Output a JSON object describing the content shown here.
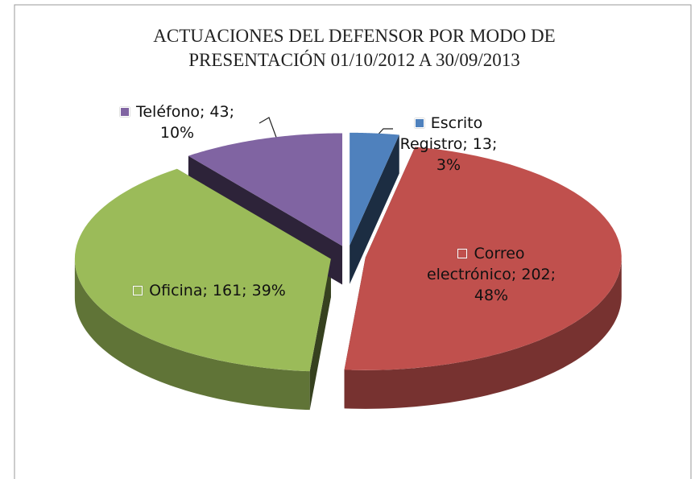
{
  "chart_data": {
    "type": "pie3d",
    "title": "ACTUACIONES DEL DEFENSOR POR MODO DE PRESENTACIÓN 01/10/2012 A 30/09/2013",
    "values": [
      13,
      202,
      161,
      43
    ],
    "percentages": [
      3,
      48,
      39,
      10
    ],
    "value_labels": [
      "Escrito Registro; 13; 3%",
      "Correo electrónico; 202; 48%",
      "Oficina; 161; 39%",
      "Teléfono; 43; 10%"
    ],
    "colors": [
      "#4f81bd",
      "#c0504d",
      "#9bbb59",
      "#8064a2"
    ]
  }
}
